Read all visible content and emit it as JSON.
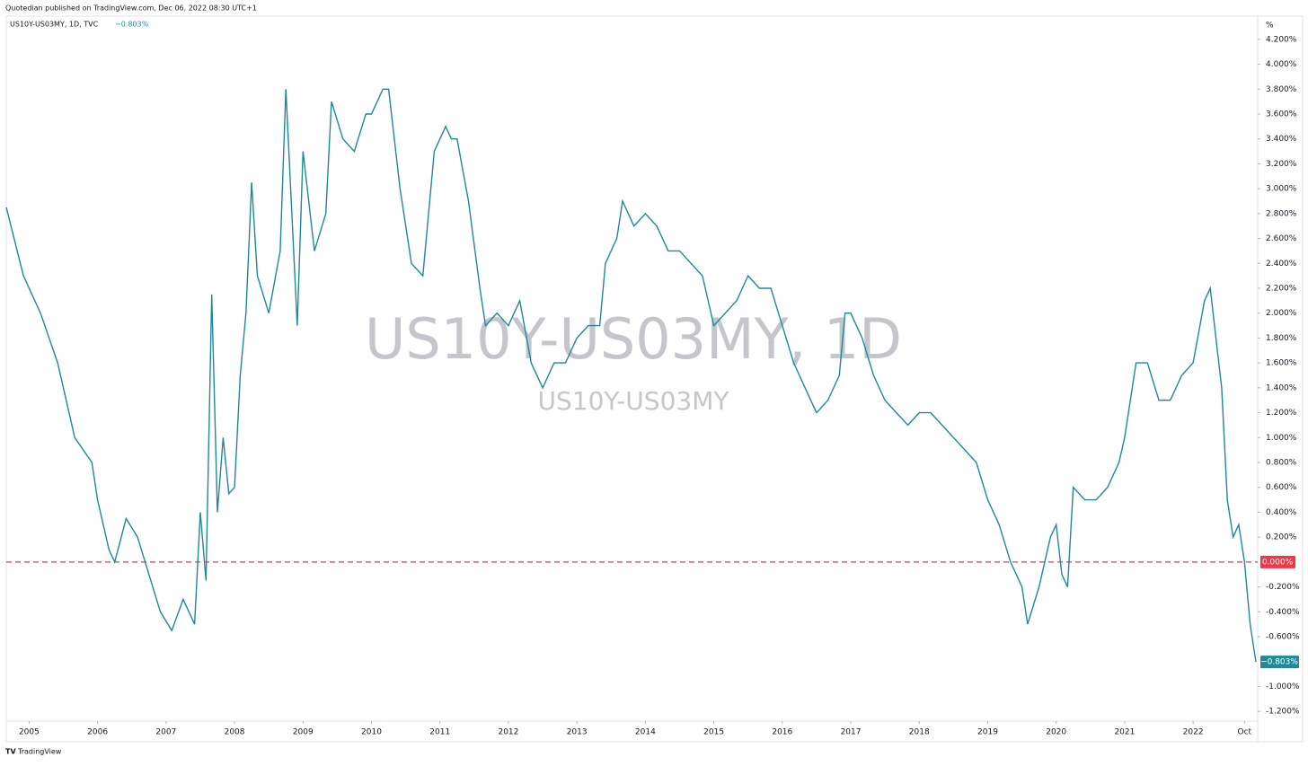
{
  "header": "Quotedian published on TradingView.com, Dec 06, 2022 08:30 UTC+1",
  "footer": "TradingView",
  "chart_data": {
    "type": "line",
    "symbol": "US10Y-US03MY, 1D, TVC",
    "last_label": "−0.803%",
    "watermark": "US10Y-US03MY, 1D",
    "watermark_sub": "US10Y-US03MY",
    "y_unit": "%",
    "x": [
      "2004-09",
      "2004-12",
      "2005-03",
      "2005-06",
      "2005-09",
      "2005-12",
      "2006-01",
      "2006-03",
      "2006-04",
      "2006-06",
      "2006-08",
      "2006-10",
      "2006-12",
      "2007-02",
      "2007-04",
      "2007-06",
      "2007-07",
      "2007-08",
      "2007-09",
      "2007-10",
      "2007-11",
      "2007-12",
      "2008-01",
      "2008-02",
      "2008-03",
      "2008-04",
      "2008-05",
      "2008-07",
      "2008-09",
      "2008-10",
      "2008-12",
      "2009-01",
      "2009-03",
      "2009-05",
      "2009-06",
      "2009-08",
      "2009-10",
      "2009-12",
      "2010-01",
      "2010-03",
      "2010-04",
      "2010-06",
      "2010-08",
      "2010-10",
      "2010-12",
      "2011-01",
      "2011-02",
      "2011-03",
      "2011-04",
      "2011-06",
      "2011-08",
      "2011-09",
      "2011-11",
      "2012-01",
      "2012-03",
      "2012-05",
      "2012-07",
      "2012-09",
      "2012-11",
      "2013-01",
      "2013-03",
      "2013-05",
      "2013-06",
      "2013-08",
      "2013-09",
      "2013-11",
      "2014-01",
      "2014-03",
      "2014-05",
      "2014-07",
      "2014-09",
      "2014-11",
      "2015-01",
      "2015-03",
      "2015-05",
      "2015-07",
      "2015-09",
      "2015-11",
      "2016-01",
      "2016-03",
      "2016-05",
      "2016-07",
      "2016-09",
      "2016-11",
      "2016-12",
      "2017-01",
      "2017-03",
      "2017-05",
      "2017-07",
      "2017-09",
      "2017-11",
      "2018-01",
      "2018-03",
      "2018-05",
      "2018-07",
      "2018-09",
      "2018-11",
      "2019-01",
      "2019-03",
      "2019-05",
      "2019-07",
      "2019-08",
      "2019-10",
      "2019-12",
      "2020-01",
      "2020-02",
      "2020-03",
      "2020-04",
      "2020-06",
      "2020-08",
      "2020-10",
      "2020-12",
      "2021-01",
      "2021-03",
      "2021-05",
      "2021-07",
      "2021-09",
      "2021-11",
      "2022-01",
      "2022-03",
      "2022-04",
      "2022-05",
      "2022-06",
      "2022-07",
      "2022-08",
      "2022-09",
      "2022-10",
      "2022-11",
      "2022-12"
    ],
    "series": [
      {
        "name": "US10Y-US03MY",
        "color": "#1e8a98",
        "values": [
          2.85,
          2.3,
          2.0,
          1.6,
          1.0,
          0.8,
          0.5,
          0.1,
          0.0,
          0.35,
          0.2,
          -0.1,
          -0.4,
          -0.55,
          -0.3,
          -0.5,
          0.4,
          -0.15,
          2.15,
          0.4,
          1.0,
          0.55,
          0.6,
          1.5,
          2.0,
          3.05,
          2.3,
          2.0,
          2.5,
          3.8,
          1.9,
          3.3,
          2.5,
          2.8,
          3.7,
          3.4,
          3.3,
          3.6,
          3.6,
          3.8,
          3.8,
          3.0,
          2.4,
          2.3,
          3.3,
          3.4,
          3.5,
          3.4,
          3.4,
          2.9,
          2.2,
          1.9,
          2.0,
          1.9,
          2.1,
          1.6,
          1.4,
          1.6,
          1.6,
          1.8,
          1.9,
          1.9,
          2.4,
          2.6,
          2.9,
          2.7,
          2.8,
          2.7,
          2.5,
          2.5,
          2.4,
          2.3,
          1.9,
          2.0,
          2.1,
          2.3,
          2.2,
          2.2,
          1.9,
          1.6,
          1.4,
          1.2,
          1.3,
          1.5,
          2.0,
          2.0,
          1.8,
          1.5,
          1.3,
          1.2,
          1.1,
          1.2,
          1.2,
          1.1,
          1.0,
          0.9,
          0.8,
          0.5,
          0.3,
          0.0,
          -0.2,
          -0.5,
          -0.2,
          0.2,
          0.3,
          -0.1,
          -0.2,
          0.6,
          0.5,
          0.5,
          0.6,
          0.8,
          1.0,
          1.6,
          1.6,
          1.3,
          1.3,
          1.5,
          1.6,
          2.1,
          2.2,
          1.8,
          1.4,
          0.5,
          0.2,
          0.3,
          0.0,
          -0.5,
          -0.803
        ]
      }
    ],
    "xlim": [
      "2004-09",
      "2022-12"
    ],
    "xticks": [
      {
        "value": "2005-01",
        "label": "2005"
      },
      {
        "value": "2006-01",
        "label": "2006"
      },
      {
        "value": "2007-01",
        "label": "2007"
      },
      {
        "value": "2008-01",
        "label": "2008"
      },
      {
        "value": "2009-01",
        "label": "2009"
      },
      {
        "value": "2010-01",
        "label": "2010"
      },
      {
        "value": "2011-01",
        "label": "2011"
      },
      {
        "value": "2012-01",
        "label": "2012"
      },
      {
        "value": "2013-01",
        "label": "2013"
      },
      {
        "value": "2014-01",
        "label": "2014"
      },
      {
        "value": "2015-01",
        "label": "2015"
      },
      {
        "value": "2016-01",
        "label": "2016"
      },
      {
        "value": "2017-01",
        "label": "2017"
      },
      {
        "value": "2018-01",
        "label": "2018"
      },
      {
        "value": "2019-01",
        "label": "2019"
      },
      {
        "value": "2020-01",
        "label": "2020"
      },
      {
        "value": "2021-01",
        "label": "2021"
      },
      {
        "value": "2022-01",
        "label": "2022"
      },
      {
        "value": "2022-10",
        "label": "Oct"
      }
    ],
    "ylim": [
      -1.3,
      4.3
    ],
    "yticks": [
      {
        "value": 4.2,
        "label": "4.200%"
      },
      {
        "value": 4.0,
        "label": "4.000%"
      },
      {
        "value": 3.8,
        "label": "3.800%"
      },
      {
        "value": 3.6,
        "label": "3.600%"
      },
      {
        "value": 3.4,
        "label": "3.400%"
      },
      {
        "value": 3.2,
        "label": "3.200%"
      },
      {
        "value": 3.0,
        "label": "3.000%"
      },
      {
        "value": 2.8,
        "label": "2.800%"
      },
      {
        "value": 2.6,
        "label": "2.600%"
      },
      {
        "value": 2.4,
        "label": "2.400%"
      },
      {
        "value": 2.2,
        "label": "2.200%"
      },
      {
        "value": 2.0,
        "label": "2.000%"
      },
      {
        "value": 1.8,
        "label": "1.800%"
      },
      {
        "value": 1.6,
        "label": "1.600%"
      },
      {
        "value": 1.4,
        "label": "1.400%"
      },
      {
        "value": 1.2,
        "label": "1.200%"
      },
      {
        "value": 1.0,
        "label": "1.000%"
      },
      {
        "value": 0.8,
        "label": "0.800%"
      },
      {
        "value": 0.6,
        "label": "0.600%"
      },
      {
        "value": 0.4,
        "label": "0.400%"
      },
      {
        "value": 0.2,
        "label": "0.200%"
      },
      {
        "value": -0.2,
        "label": "-0.200%"
      },
      {
        "value": -0.4,
        "label": "-0.400%"
      },
      {
        "value": -0.6,
        "label": "-0.600%"
      },
      {
        "value": -1.0,
        "label": "-1.000%"
      },
      {
        "value": -1.2,
        "label": "-1.200%"
      }
    ],
    "hline": {
      "value": 0,
      "label": "0.000%",
      "color": "#f23645"
    }
  }
}
